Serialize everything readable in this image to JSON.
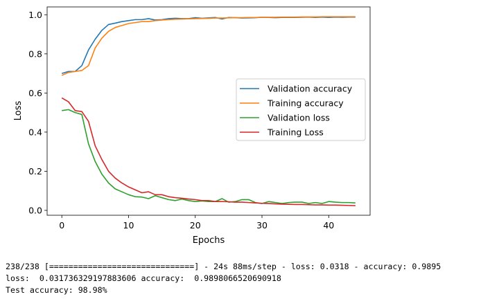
{
  "chart_data": {
    "type": "line",
    "xlabel": "Epochs",
    "ylabel": "Loss",
    "xlim": [
      -2.2,
      46.2
    ],
    "ylim": [
      -0.025,
      1.04
    ],
    "xticks": [
      0,
      10,
      20,
      30,
      40
    ],
    "xtick_labels": [
      "0",
      "10",
      "20",
      "30",
      "40"
    ],
    "yticks": [
      0.0,
      0.2,
      0.4,
      0.6,
      0.8,
      1.0
    ],
    "ytick_labels": [
      "0.0",
      "0.2",
      "0.4",
      "0.6",
      "0.8",
      "1.0"
    ],
    "grid": false,
    "legend_position": "center-right",
    "x": [
      0,
      1,
      2,
      3,
      4,
      5,
      6,
      7,
      8,
      9,
      10,
      11,
      12,
      13,
      14,
      15,
      16,
      17,
      18,
      19,
      20,
      21,
      22,
      23,
      24,
      25,
      26,
      27,
      28,
      29,
      30,
      31,
      32,
      33,
      34,
      35,
      36,
      37,
      38,
      39,
      40,
      41,
      42,
      43,
      44
    ],
    "series": [
      {
        "name": "Validation accuracy",
        "color": "#1f77b4",
        "values": [
          0.7,
          0.71,
          0.71,
          0.74,
          0.82,
          0.875,
          0.92,
          0.95,
          0.957,
          0.965,
          0.97,
          0.975,
          0.975,
          0.98,
          0.973,
          0.975,
          0.98,
          0.982,
          0.98,
          0.98,
          0.985,
          0.982,
          0.984,
          0.986,
          0.978,
          0.986,
          0.985,
          0.983,
          0.984,
          0.985,
          0.987,
          0.986,
          0.985,
          0.986,
          0.986,
          0.986,
          0.987,
          0.988,
          0.986,
          0.988,
          0.986,
          0.988,
          0.987,
          0.988,
          0.988
        ]
      },
      {
        "name": "Training accuracy",
        "color": "#ff7f0e",
        "values": [
          0.69,
          0.705,
          0.71,
          0.715,
          0.74,
          0.83,
          0.88,
          0.915,
          0.935,
          0.945,
          0.955,
          0.96,
          0.965,
          0.965,
          0.97,
          0.973,
          0.975,
          0.977,
          0.978,
          0.979,
          0.98,
          0.981,
          0.982,
          0.983,
          0.983,
          0.984,
          0.985,
          0.985,
          0.986,
          0.986,
          0.987,
          0.987,
          0.987,
          0.988,
          0.988,
          0.988,
          0.989,
          0.989,
          0.989,
          0.99,
          0.99,
          0.99,
          0.99,
          0.99,
          0.99
        ]
      },
      {
        "name": "Validation loss",
        "color": "#2ca02c",
        "values": [
          0.51,
          0.515,
          0.5,
          0.49,
          0.34,
          0.25,
          0.185,
          0.14,
          0.11,
          0.095,
          0.08,
          0.07,
          0.068,
          0.06,
          0.075,
          0.065,
          0.055,
          0.05,
          0.058,
          0.05,
          0.045,
          0.048,
          0.045,
          0.045,
          0.06,
          0.042,
          0.045,
          0.055,
          0.055,
          0.04,
          0.035,
          0.045,
          0.04,
          0.035,
          0.04,
          0.042,
          0.042,
          0.035,
          0.04,
          0.035,
          0.045,
          0.042,
          0.04,
          0.04,
          0.038
        ]
      },
      {
        "name": "Training Loss",
        "color": "#d62728",
        "values": [
          0.575,
          0.555,
          0.51,
          0.505,
          0.455,
          0.33,
          0.26,
          0.2,
          0.165,
          0.14,
          0.12,
          0.105,
          0.09,
          0.095,
          0.08,
          0.08,
          0.07,
          0.065,
          0.062,
          0.058,
          0.055,
          0.05,
          0.05,
          0.045,
          0.045,
          0.044,
          0.042,
          0.042,
          0.04,
          0.038,
          0.036,
          0.035,
          0.033,
          0.032,
          0.031,
          0.03,
          0.03,
          0.029,
          0.028,
          0.028,
          0.027,
          0.027,
          0.026,
          0.025,
          0.024
        ]
      }
    ]
  },
  "console": {
    "line1": "238/238 [==============================] - 24s 88ms/step - loss: 0.0318 - accuracy: 0.9895",
    "line2": "loss:  0.031736329197883606 accuracy:  0.9898066520690918",
    "line3": "Test accuracy: 98.98%"
  }
}
